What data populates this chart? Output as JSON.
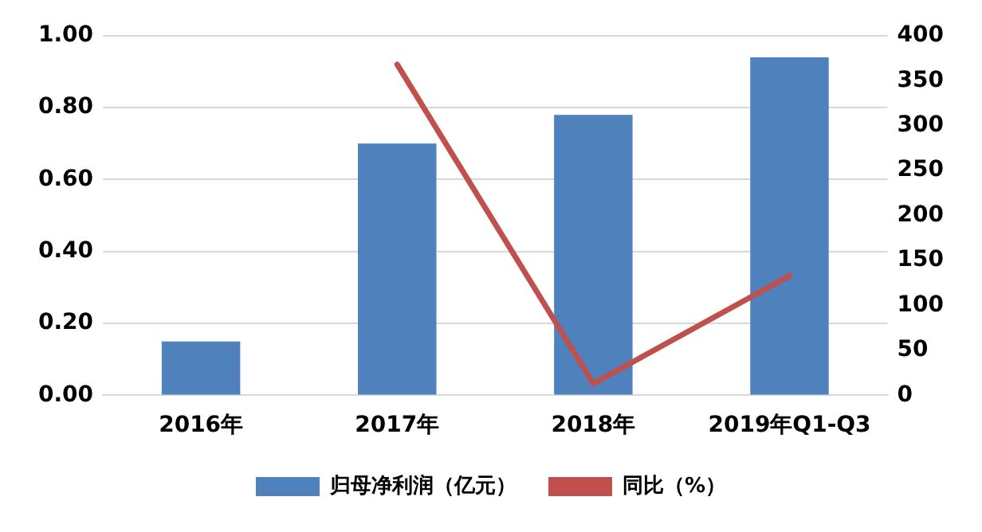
{
  "chart_data": {
    "type": "bar",
    "categories": [
      "2016年",
      "2017年",
      "2018年",
      "2019年Q1-Q3"
    ],
    "series": [
      {
        "name": "归母净利润（亿元）",
        "color": "#4f81bd",
        "values": [
          0.15,
          0.7,
          0.78,
          0.94
        ]
      },
      {
        "name": "同比（%）",
        "type": "line",
        "axis": "y2",
        "color": "#c0504d",
        "values": [
          null,
          368,
          13,
          133
        ]
      }
    ],
    "ylim": [
      0,
      1
    ],
    "yticks": [
      {
        "value": 0,
        "label": "0.00"
      },
      {
        "value": 0.2,
        "label": "0.20"
      },
      {
        "value": 0.4,
        "label": "0.40"
      },
      {
        "value": 0.6,
        "label": "0.60"
      },
      {
        "value": 0.8,
        "label": "0.80"
      },
      {
        "value": 1,
        "label": "1.00"
      }
    ],
    "y2lim": [
      0,
      400
    ],
    "y2ticks": [
      0,
      50,
      100,
      150,
      200,
      250,
      300,
      350,
      400
    ],
    "grid": "y",
    "legend": "bottom",
    "marker": "none"
  }
}
